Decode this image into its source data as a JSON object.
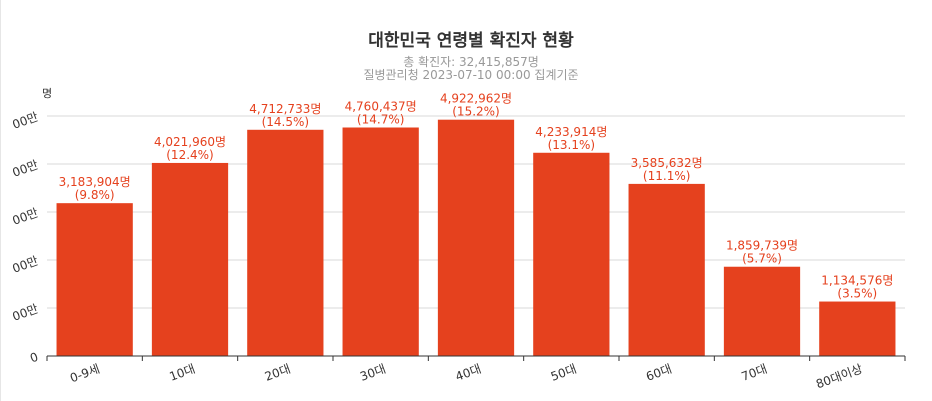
{
  "chart_data": {
    "type": "bar",
    "title": "대한민국 연령별 확진자 현황",
    "subtitle_lines": [
      "총 확진자: 32,415,857명",
      "질병관리청 2023-07-10 00:00 집계기준"
    ],
    "ylabel": "명",
    "categories": [
      "0-9세",
      "10대",
      "20대",
      "30대",
      "40대",
      "50대",
      "60대",
      "70대",
      "80대이상"
    ],
    "values": [
      3183904,
      4021960,
      4712733,
      4760437,
      4922962,
      4233914,
      3585632,
      1859739,
      1134576
    ],
    "value_labels": [
      "3,183,904명",
      "4,021,960명",
      "4,712,733명",
      "4,760,437명",
      "4,922,962명",
      "4,233,914명",
      "3,585,632명",
      "1,859,739명",
      "1,134,576명"
    ],
    "percent_labels": [
      "(9.8%)",
      "(12.4%)",
      "(14.5%)",
      "(14.7%)",
      "(15.2%)",
      "(13.1%)",
      "(11.1%)",
      "(5.7%)",
      "(3.5%)"
    ],
    "y_ticks": [
      0,
      1000000,
      2000000,
      3000000,
      4000000,
      5000000
    ],
    "y_tick_labels": [
      "0",
      "00만",
      "00만",
      "00만",
      "00만",
      "00만"
    ],
    "ylim": [
      0,
      5000000
    ],
    "bar_color": "#e5411e",
    "grid": true
  }
}
